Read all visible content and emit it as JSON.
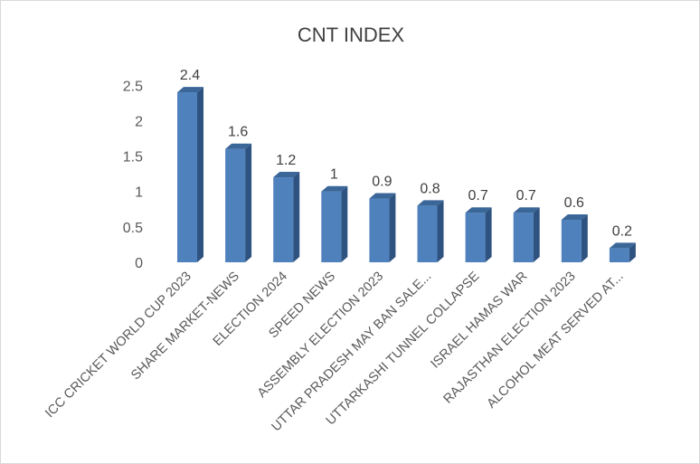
{
  "chart_data": {
    "type": "bar",
    "style": "3d-column",
    "title": "CNT INDEX",
    "categories": [
      "ICC CRICKET WORLD CUP 2023",
      "SHARE MARKET-NEWS",
      "ELECTION 2024",
      "SPEED NEWS",
      "ASSEMBLY ELECTION 2023",
      "UTTAR PRADESH MAY BAN SALE...",
      "UTTARKASHI TUNNEL COLLAPSE",
      "ISRAEL HAMAS WAR",
      "RAJASTHAN ELECTION 2023",
      "ALCOHOL MEAT SERVED AT..."
    ],
    "values": [
      2.4,
      1.6,
      1.2,
      1,
      0.9,
      0.8,
      0.7,
      0.7,
      0.6,
      0.2
    ],
    "data_labels": [
      "2.4",
      "1.6",
      "1.2",
      "1",
      "0.9",
      "0.8",
      "0.7",
      "0.7",
      "0.6",
      "0.2"
    ],
    "yticks": [
      "0",
      "0.5",
      "1",
      "1.5",
      "2",
      "2.5"
    ],
    "ylim": [
      0,
      2.5
    ],
    "grid": false,
    "legend": "none",
    "colors": {
      "front": "#4f81bd",
      "side": "#2f5381",
      "top": "#3a6698"
    }
  }
}
